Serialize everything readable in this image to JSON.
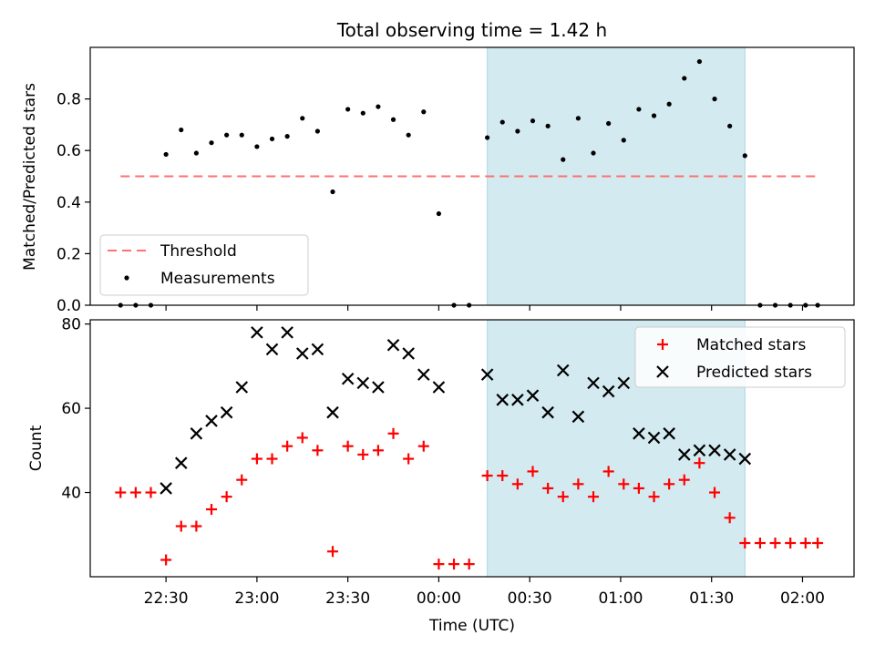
{
  "colors": {
    "threshold": "#ff7070",
    "measurement": "#000000",
    "matched": "#ff0000",
    "predicted": "#000000",
    "shade_fill": "#d3eaf0",
    "shade_edge": "#a9d6e3"
  },
  "chart_data": [
    {
      "type": "scatter",
      "title": "Total observing time = 1.42 h",
      "ylabel": "Matched/Predicted stars",
      "ylim": [
        0,
        1.0
      ],
      "yticks": [
        0.0,
        0.2,
        0.4,
        0.6,
        0.8
      ],
      "ytick_labels": [
        "0.0",
        "0.2",
        "0.4",
        "0.6",
        "0.8"
      ],
      "xlim": [
        "22:05",
        "02:17"
      ],
      "shaded_interval": [
        "00:16",
        "01:41"
      ],
      "legend_position": "lower-left",
      "threshold": {
        "name": "Threshold",
        "value": 0.5,
        "x_range": [
          "22:15",
          "02:05"
        ]
      },
      "series": [
        {
          "name": "Measurements",
          "x": [
            "22:15",
            "22:20",
            "22:25",
            "22:30",
            "22:35",
            "22:40",
            "22:45",
            "22:50",
            "22:55",
            "23:00",
            "23:05",
            "23:10",
            "23:15",
            "23:20",
            "23:25",
            "23:30",
            "23:35",
            "23:40",
            "23:45",
            "23:50",
            "23:55",
            "00:00",
            "00:05",
            "00:10",
            "00:16",
            "00:21",
            "00:26",
            "00:31",
            "00:36",
            "00:41",
            "00:46",
            "00:51",
            "00:56",
            "01:01",
            "01:06",
            "01:11",
            "01:16",
            "01:21",
            "01:26",
            "01:31",
            "01:36",
            "01:41",
            "01:46",
            "01:51",
            "01:56",
            "02:01",
            "02:05"
          ],
          "values": [
            0.0,
            0.0,
            0.0,
            0.585,
            0.68,
            0.59,
            0.63,
            0.66,
            0.66,
            0.615,
            0.645,
            0.655,
            0.725,
            0.675,
            0.44,
            0.76,
            0.745,
            0.77,
            0.72,
            0.66,
            0.75,
            0.355,
            0.0,
            0.0,
            0.65,
            0.71,
            0.675,
            0.715,
            0.695,
            0.565,
            0.725,
            0.59,
            0.705,
            0.64,
            0.76,
            0.735,
            0.78,
            0.88,
            0.945,
            0.8,
            0.695,
            0.58,
            0.0,
            0.0,
            0.0,
            0.0,
            0.0
          ]
        }
      ]
    },
    {
      "type": "scatter",
      "ylabel": "Count",
      "xlabel": "Time (UTC)",
      "ylim": [
        20,
        81
      ],
      "yticks": [
        40,
        60,
        80
      ],
      "ytick_labels": [
        "40",
        "60",
        "80"
      ],
      "xlim": [
        "22:05",
        "02:17"
      ],
      "xticks": [
        "22:30",
        "23:00",
        "23:30",
        "00:00",
        "00:30",
        "01:00",
        "01:30",
        "02:00"
      ],
      "xtick_labels": [
        "22:30",
        "23:00",
        "23:30",
        "00:00",
        "00:30",
        "01:00",
        "01:30",
        "02:00"
      ],
      "shaded_interval": [
        "00:16",
        "01:41"
      ],
      "legend_position": "upper-right",
      "series": [
        {
          "name": "Matched stars",
          "marker": "plus",
          "x": [
            "22:15",
            "22:20",
            "22:25",
            "22:30",
            "22:35",
            "22:40",
            "22:45",
            "22:50",
            "22:55",
            "23:00",
            "23:05",
            "23:10",
            "23:15",
            "23:20",
            "23:25",
            "23:30",
            "23:35",
            "23:40",
            "23:45",
            "23:50",
            "23:55",
            "00:00",
            "00:05",
            "00:10",
            "00:16",
            "00:21",
            "00:26",
            "00:31",
            "00:36",
            "00:41",
            "00:46",
            "00:51",
            "00:56",
            "01:01",
            "01:06",
            "01:11",
            "01:16",
            "01:21",
            "01:26",
            "01:31",
            "01:36",
            "01:41",
            "01:46",
            "01:51",
            "01:56",
            "02:01",
            "02:05"
          ],
          "values": [
            40,
            40,
            40,
            24,
            32,
            32,
            36,
            39,
            43,
            48,
            48,
            51,
            53,
            50,
            26,
            51,
            49,
            50,
            54,
            48,
            51,
            23,
            23,
            23,
            44,
            44,
            42,
            45,
            41,
            39,
            42,
            39,
            45,
            42,
            41,
            39,
            42,
            43,
            47,
            40,
            34,
            28,
            28,
            28,
            28,
            28,
            28
          ]
        },
        {
          "name": "Predicted stars",
          "marker": "x",
          "x": [
            "22:30",
            "22:35",
            "22:40",
            "22:45",
            "22:50",
            "22:55",
            "23:00",
            "23:05",
            "23:10",
            "23:15",
            "23:20",
            "23:25",
            "23:30",
            "23:35",
            "23:40",
            "23:45",
            "23:50",
            "23:55",
            "00:00",
            "00:16",
            "00:21",
            "00:26",
            "00:31",
            "00:36",
            "00:41",
            "00:46",
            "00:51",
            "00:56",
            "01:01",
            "01:06",
            "01:11",
            "01:16",
            "01:21",
            "01:26",
            "01:31",
            "01:36",
            "01:41"
          ],
          "values": [
            41,
            47,
            54,
            57,
            59,
            65,
            78,
            74,
            78,
            73,
            74,
            59,
            67,
            66,
            65,
            75,
            73,
            68,
            65,
            68,
            62,
            62,
            63,
            59,
            69,
            58,
            66,
            64,
            66,
            54,
            53,
            54,
            49,
            50,
            50,
            49,
            48
          ]
        }
      ]
    }
  ]
}
